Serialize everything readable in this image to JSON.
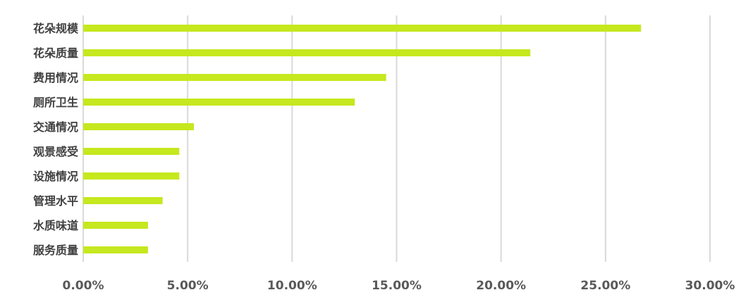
{
  "chart_data": {
    "type": "bar",
    "orientation": "horizontal",
    "categories": [
      "花朵规模",
      "花朵质量",
      "费用情况",
      "厕所卫生",
      "交通情况",
      "观景感受",
      "设施情况",
      "管理水平",
      "水质味道",
      "服务质量"
    ],
    "values": [
      26.7,
      21.4,
      14.5,
      13.0,
      5.3,
      4.6,
      4.6,
      3.8,
      3.1,
      3.1
    ],
    "x_ticks": [
      "0.00%",
      "5.00%",
      "10.00%",
      "15.00%",
      "20.00%",
      "25.00%",
      "30.00%"
    ],
    "xlim": [
      0,
      30
    ],
    "grid": true,
    "legend": "none",
    "title": "",
    "xlabel": "",
    "ylabel": "",
    "colors": {
      "bar": "#c5e81e",
      "grid": "#d9d9d9",
      "category_text": "#404040",
      "tick_text": "#595959"
    }
  }
}
